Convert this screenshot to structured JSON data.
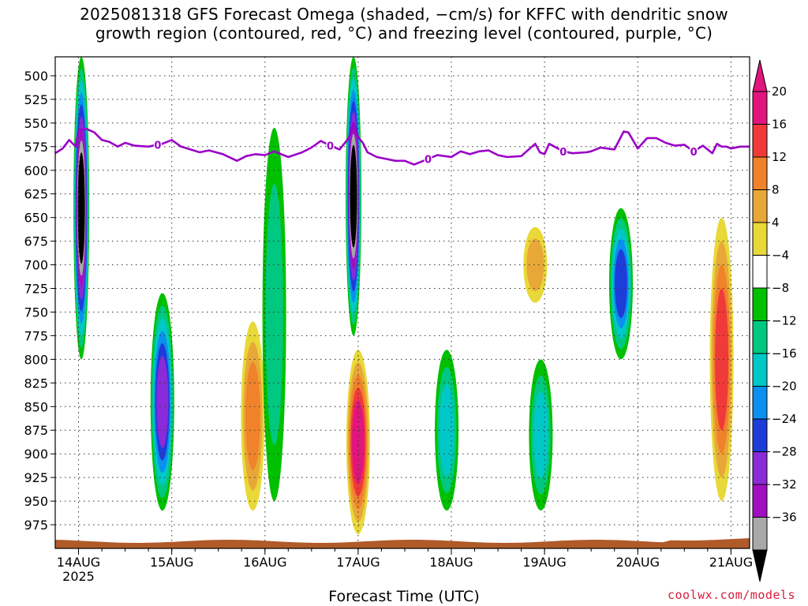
{
  "chart_data": {
    "type": "heatmap",
    "title_lines": [
      "2025081318 GFS Forecast Omega (shaded, −cm/s) for KFFC with dendritic snow",
      "growth region (contoured, red, °C) and freezing level (contoured, purple, °C)"
    ],
    "xlabel": "Forecast Time (UTC)",
    "x_ticks": [
      "14AUG",
      "15AUG",
      "16AUG",
      "17AUG",
      "18AUG",
      "19AUG",
      "20AUG",
      "21AUG"
    ],
    "x_year_label": "2025",
    "x_range_days": [
      13.75,
      21.2
    ],
    "y_ticks": [
      500,
      525,
      550,
      575,
      600,
      625,
      650,
      675,
      700,
      725,
      750,
      775,
      800,
      825,
      850,
      875,
      900,
      925,
      950,
      975
    ],
    "y_range_hpa": [
      480,
      1000
    ],
    "y_axis": "pressure (hPa), reversed",
    "grid": "dotted",
    "colorbar": {
      "labels": [
        "20",
        "16",
        "12",
        "8",
        "4",
        "−4",
        "−8",
        "−12",
        "−16",
        "−20",
        "−24",
        "−28",
        "−32",
        "−36"
      ],
      "colors": [
        "#e0157e",
        "#f03a3a",
        "#f0822a",
        "#e8a838",
        "#e8d838",
        "#ffffff",
        "#00c000",
        "#00c880",
        "#00c8c8",
        "#0a90ee",
        "#1e3cd8",
        "#8a2ad8",
        "#a010c0",
        "#a8a8a8"
      ],
      "top_arrow_color": "#e0157e",
      "bottom_arrow_color": "#000000"
    },
    "freezing_level_label": "0",
    "freezing_level_color": "#9a00c8",
    "freezing_level_series": {
      "x_day": [
        13.75,
        13.83,
        13.9,
        13.97,
        14.0,
        14.08,
        14.17,
        14.25,
        14.33,
        14.42,
        14.5,
        14.6,
        14.75,
        14.9,
        15.0,
        15.1,
        15.2,
        15.3,
        15.4,
        15.55,
        15.7,
        15.8,
        15.9,
        16.0,
        16.1,
        16.25,
        16.4,
        16.5,
        16.6,
        16.7,
        16.8,
        16.9,
        16.95,
        17.0,
        17.05,
        17.1,
        17.2,
        17.3,
        17.4,
        17.5,
        17.6,
        17.75,
        17.85,
        18.0,
        18.1,
        18.2,
        18.3,
        18.4,
        18.5,
        18.6,
        18.75,
        18.9,
        18.95,
        19.0,
        19.05,
        19.2,
        19.3,
        19.45,
        19.5,
        19.6,
        19.75,
        19.85,
        19.9,
        20.0,
        20.1,
        20.2,
        20.3,
        20.4,
        20.5,
        20.6,
        20.7,
        20.8,
        20.85,
        20.9,
        20.95,
        21.0,
        21.1,
        21.2
      ],
      "pressure": [
        582,
        577,
        568,
        575,
        558,
        556,
        560,
        568,
        570,
        575,
        571,
        574,
        575,
        572,
        568,
        575,
        578,
        581,
        579,
        583,
        590,
        585,
        583,
        584,
        580,
        586,
        581,
        576,
        569,
        574,
        578,
        566,
        550,
        565,
        571,
        581,
        586,
        588,
        590,
        590,
        594,
        588,
        584,
        586,
        580,
        583,
        580,
        579,
        584,
        586,
        585,
        572,
        581,
        583,
        572,
        580,
        582,
        581,
        580,
        576,
        578,
        559,
        560,
        577,
        566,
        566,
        571,
        574,
        573,
        580,
        574,
        582,
        572,
        575,
        575,
        577,
        575,
        575
      ]
    },
    "omega_features": [
      {
        "x_center_day": 14.03,
        "p_top": 480,
        "p_bottom": 800,
        "peak": -36
      },
      {
        "x_center_day": 14.9,
        "p_top": 730,
        "p_bottom": 960,
        "peak": -24
      },
      {
        "x_center_day": 15.87,
        "p_top": 760,
        "p_bottom": 960,
        "peak": 12
      },
      {
        "x_center_day": 16.1,
        "p_top": 555,
        "p_bottom": 950,
        "peak": -8
      },
      {
        "x_center_day": 16.95,
        "p_top": 480,
        "p_bottom": 775,
        "peak": -36
      },
      {
        "x_center_day": 17.0,
        "p_top": 790,
        "p_bottom": 985,
        "peak": 20
      },
      {
        "x_center_day": 17.95,
        "p_top": 790,
        "p_bottom": 960,
        "peak": -12
      },
      {
        "x_center_day": 18.9,
        "p_top": 660,
        "p_bottom": 740,
        "peak": 8
      },
      {
        "x_center_day": 18.96,
        "p_top": 800,
        "p_bottom": 960,
        "peak": -12
      },
      {
        "x_center_day": 19.82,
        "p_top": 640,
        "p_bottom": 800,
        "peak": -20
      },
      {
        "x_center_day": 20.9,
        "p_top": 650,
        "p_bottom": 950,
        "peak": 16
      }
    ],
    "ground_color": "#b05a2a"
  },
  "credit": "coolwx.com/models"
}
